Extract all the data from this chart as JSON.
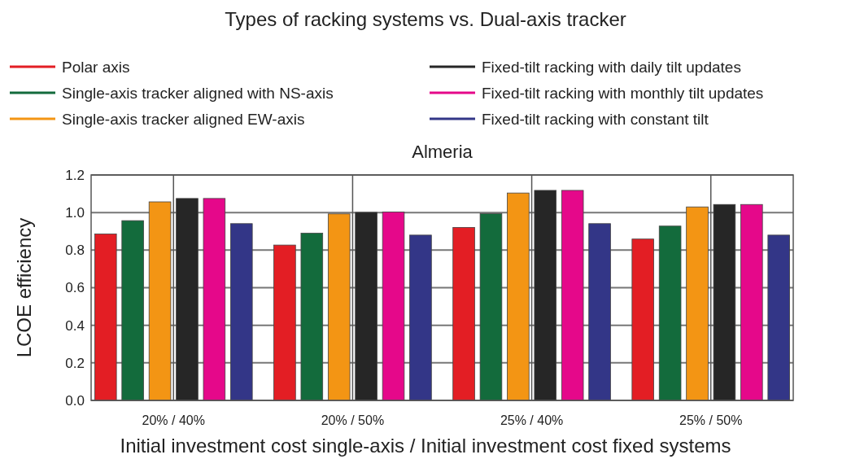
{
  "chart_data": {
    "type": "bar",
    "title": "Types of racking systems vs. Dual-axis tracker",
    "subtitle": "Almeria",
    "xlabel": "Initial investment cost single-axis / Initial investment cost fixed systems",
    "ylabel": "LCOE efficiency",
    "categories": [
      "20% / 40%",
      "20% / 50%",
      "25% / 40%",
      "25% / 50%"
    ],
    "series": [
      {
        "name": "Polar axis",
        "color": "#e31e24",
        "values": [
          0.886,
          0.827,
          0.921,
          0.859
        ]
      },
      {
        "name": "Single-axis tracker aligned with NS-axis",
        "color": "#136b3c",
        "values": [
          0.957,
          0.89,
          0.994,
          0.928
        ]
      },
      {
        "name": "Single-axis tracker aligned EW-axis",
        "color": "#f39514",
        "values": [
          1.057,
          0.993,
          1.104,
          1.03
        ]
      },
      {
        "name": "Fixed-tilt racking with daily tilt updates",
        "color": "#262626",
        "values": [
          1.075,
          1.001,
          1.118,
          1.043
        ]
      },
      {
        "name": "Fixed-tilt racking with monthly tilt updates",
        "color": "#e5088a",
        "values": [
          1.075,
          1.003,
          1.118,
          1.043
        ]
      },
      {
        "name": "Fixed-tilt racking with constant tilt",
        "color": "#333687",
        "values": [
          0.941,
          0.88,
          0.941,
          0.88
        ]
      }
    ],
    "ylim": [
      0,
      1.2
    ],
    "yticks": [
      {
        "value": 0,
        "label": "0.0"
      },
      0.2,
      0.4,
      0.6,
      0.8,
      {
        "value": 1,
        "label": "1.0"
      },
      1.2
    ],
    "grid": true,
    "legend": "top"
  }
}
